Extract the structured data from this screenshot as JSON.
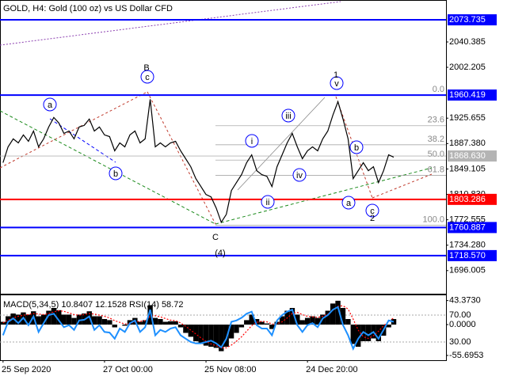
{
  "chart_data": [
    {
      "type": "line",
      "title": "GOLD, H4:  Gold (100 oz) vs US Dollar CFD",
      "x": [
        0,
        1,
        2,
        3,
        4,
        5,
        6,
        7,
        8,
        9,
        10,
        11,
        12,
        13,
        14,
        15,
        16,
        17,
        18,
        19,
        20,
        21,
        22,
        23,
        24,
        25,
        26,
        27,
        28,
        29,
        30,
        31,
        32,
        33,
        34,
        35,
        36,
        37,
        38,
        39,
        40,
        41,
        42,
        43,
        44,
        45,
        46,
        47,
        48,
        49,
        50,
        51,
        52,
        53,
        54,
        55,
        56,
        57,
        58,
        59,
        60,
        61,
        62,
        63,
        64,
        65,
        66,
        67,
        68,
        69,
        70,
        71,
        72,
        73,
        74,
        75,
        76,
        77
      ],
      "xlim": [
        -0.6,
        87.3
      ],
      "ylim": [
        1661.2,
        2103.6
      ],
      "yticks": [
        2040.385,
        2002.205,
        1925.655,
        {
          "value": 1887.38,
          "label": "1887.380"
        },
        1849.105,
        {
          "value": 1810.83,
          "label": "1810.830"
        },
        1772.555,
        {
          "value": 1734.28,
          "label": "1734.280"
        },
        1696.005
      ],
      "series": [
        {
          "color": "#000000",
          "values": [
            1858.5,
            1882.4,
            1894.4,
            1888.4,
            1900.4,
            1890.8,
            1906.3,
            1882.4,
            1894.4,
            1912.3,
            1926.6,
            1918.3,
            1902.7,
            1906.3,
            1894.4,
            1912.3,
            1914.7,
            1924.2,
            1906.3,
            1912.3,
            1900.4,
            1897.9,
            1876.4,
            1888.4,
            1882.4,
            1900.4,
            1906.3,
            1888.4,
            1894.4,
            1954.1,
            1882.4,
            1888.4,
            1882.4,
            1888.4,
            1890.8,
            1876.4,
            1864.5,
            1852.5,
            1834.6,
            1822.6,
            1810.6,
            1807.0,
            1790.3,
            1768.8,
            1780.7,
            1816.6,
            1828.6,
            1840.5,
            1858.5,
            1870.4,
            1846.5,
            1840.5,
            1838.1,
            1822.6,
            1852.5,
            1870.4,
            1888.4,
            1902.7,
            1882.4,
            1864.5,
            1876.4,
            1882.4,
            1876.4,
            1894.4,
            1906.3,
            1930.2,
            1950.5,
            1924.2,
            1894.4,
            1834.6,
            1846.5,
            1858.5,
            1846.5,
            1852.5,
            1828.6,
            1846.5,
            1870.4,
            1866.8
          ]
        }
      ],
      "levels": [
        {
          "value": 2073.735,
          "color": "#0000ff"
        },
        {
          "value": 1960.419,
          "color": "#0000ff"
        },
        {
          "value": 1803.286,
          "color": "#ff0000"
        },
        {
          "value": 1760.887,
          "color": "#0000ff"
        },
        {
          "value": 1718.57,
          "label": "1718.570",
          "color": "#0000ff"
        }
      ],
      "current_price": {
        "value": 1868.63,
        "label": "1868.630",
        "color": "#b4b4b4"
      },
      "fib_levels": [
        {
          "value": 1960.4,
          "label": "0.0"
        },
        {
          "value": 1914.2,
          "label": "23.6"
        },
        {
          "value": 1885.5,
          "label": "38.2"
        },
        {
          "value": 1862.5,
          "label": "50.0"
        },
        {
          "value": 1839.3,
          "label": "61.8"
        },
        {
          "value": 1764.5,
          "label": "100.0"
        }
      ],
      "annotations": [
        {
          "text": "B",
          "color": "#c0392b",
          "circled": false
        },
        {
          "text": "c",
          "color": "#0000ff",
          "circled": true
        },
        {
          "text": "a",
          "color": "#0000ff",
          "circled": true
        },
        {
          "text": "b",
          "color": "#0000ff",
          "circled": true
        },
        {
          "text": "C",
          "color": "#c0392b",
          "circled": false
        },
        {
          "text": "(4)",
          "color": "#1a8a1a",
          "circled": false
        },
        {
          "text": "i",
          "color": "#0000ff",
          "circled": true
        },
        {
          "text": "ii",
          "color": "#0000ff",
          "circled": true
        },
        {
          "text": "iii",
          "color": "#0000ff",
          "circled": true
        },
        {
          "text": "iv",
          "color": "#0000ff",
          "circled": true
        },
        {
          "text": "v",
          "color": "#0000ff",
          "circled": true
        },
        {
          "text": "1",
          "color": "#c0392b",
          "circled": false
        },
        {
          "text": "a",
          "color": "#0000ff",
          "circled": true
        },
        {
          "text": "b",
          "color": "#0000ff",
          "circled": true
        },
        {
          "text": "c",
          "color": "#0000ff",
          "circled": true
        },
        {
          "text": "2",
          "color": "#c0392b",
          "circled": false
        }
      ]
    },
    {
      "type": "bar",
      "title": "MACD(5,34,5) 10.8407 12.1528 RSI(14) 58.72",
      "x": [
        0,
        1,
        2,
        3,
        4,
        5,
        6,
        7,
        8,
        9,
        10,
        11,
        12,
        13,
        14,
        15,
        16,
        17,
        18,
        19,
        20,
        21,
        22,
        23,
        24,
        25,
        26,
        27,
        28,
        29,
        30,
        31,
        32,
        33,
        34,
        35,
        36,
        37,
        38,
        39,
        40,
        41,
        42,
        43,
        44,
        45,
        46,
        47,
        48,
        49,
        50,
        51,
        52,
        53,
        54,
        55,
        56,
        57,
        58,
        59,
        60,
        61,
        62,
        63,
        64,
        65,
        66,
        67,
        68,
        69,
        70,
        71,
        72,
        73,
        74,
        75,
        76,
        77
      ],
      "xlim": [
        -0.6,
        87.3
      ],
      "xticks": [
        {
          "value": 0,
          "label": "25 Sep 2020"
        },
        {
          "value": 20,
          "label": "27 Oct 00:00"
        },
        {
          "value": 40,
          "label": "25 Nov 08:00"
        },
        {
          "value": 60,
          "label": "24 Dec 20:00"
        }
      ],
      "ylim": [
        -64.3,
        50
      ],
      "yticks": [
        {
          "value": 43.373,
          "label": "43.3730"
        },
        {
          "value": 0,
          "label": "0.0000"
        },
        {
          "value": -55.6953,
          "label": "-55.6953"
        }
      ],
      "y2lim": [
        3,
        97
      ],
      "y2ticks": [
        {
          "value": 70,
          "label": "70.00"
        },
        {
          "value": 30,
          "label": "30.00"
        }
      ],
      "series": [
        {
          "style": "histogram",
          "color": "#000000",
          "values": [
            5,
            15,
            20,
            18,
            22,
            18,
            24,
            15,
            18,
            25,
            30,
            26,
            18,
            18,
            12,
            18,
            20,
            24,
            15,
            15,
            10,
            8,
            -5,
            0,
            -2,
            8,
            12,
            5,
            8,
            35,
            12,
            10,
            5,
            6,
            6,
            -5,
            -15,
            -22,
            -30,
            -35,
            -38,
            -40,
            -42,
            -48,
            -40,
            -25,
            -15,
            -5,
            8,
            18,
            10,
            5,
            2,
            -8,
            5,
            15,
            25,
            30,
            18,
            8,
            12,
            15,
            12,
            18,
            25,
            38,
            43,
            30,
            10,
            -35,
            -40,
            -30,
            -30,
            -25,
            -30,
            -20,
            -5,
            10
          ]
        },
        {
          "style": "dotted",
          "color": "#ff0000",
          "values": [
            3,
            8,
            12,
            15,
            17,
            18,
            20,
            19,
            18,
            20,
            23,
            25,
            24,
            21,
            18,
            17,
            18,
            20,
            19,
            17,
            15,
            12,
            7,
            4,
            1,
            2,
            5,
            6,
            7,
            15,
            16,
            14,
            11,
            8,
            7,
            3,
            -3,
            -10,
            -17,
            -24,
            -30,
            -35,
            -38,
            -42,
            -42,
            -37,
            -30,
            -22,
            -12,
            -2,
            4,
            6,
            5,
            1,
            1,
            5,
            12,
            20,
            22,
            18,
            15,
            14,
            13,
            15,
            19,
            26,
            33,
            34,
            28,
            10,
            -10,
            -22,
            -25,
            -20,
            -12,
            -2,
            6,
            12
          ]
        },
        {
          "style": "line",
          "axis": "y2",
          "color": "#1e90ff",
          "values": [
            40,
            60,
            65,
            58,
            66,
            55,
            68,
            45,
            58,
            70,
            72,
            62,
            52,
            55,
            48,
            62,
            63,
            68,
            48,
            55,
            45,
            44,
            35,
            50,
            45,
            58,
            62,
            45,
            52,
            78,
            40,
            48,
            45,
            50,
            52,
            40,
            35,
            30,
            28,
            28,
            30,
            32,
            28,
            22,
            35,
            60,
            62,
            66,
            72,
            75,
            55,
            50,
            50,
            40,
            62,
            70,
            75,
            78,
            55,
            45,
            55,
            58,
            52,
            65,
            70,
            78,
            82,
            55,
            40,
            20,
            35,
            45,
            40,
            45,
            35,
            48,
            62,
            60
          ]
        }
      ]
    }
  ]
}
